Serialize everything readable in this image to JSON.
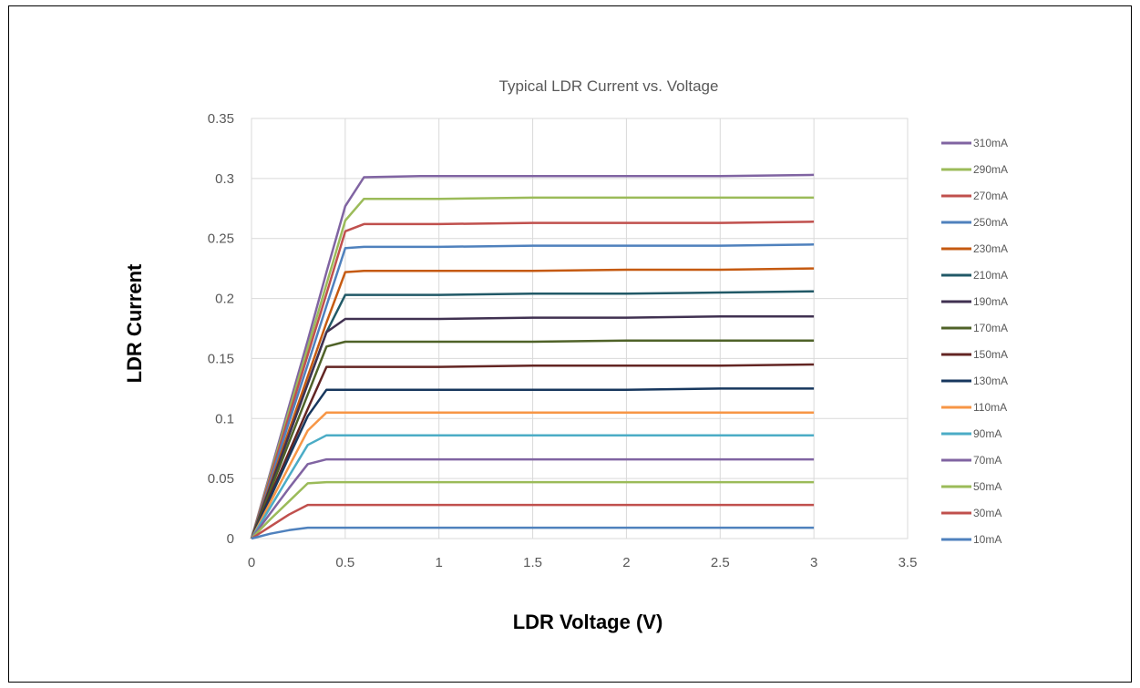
{
  "chart_data": {
    "type": "line",
    "title": "Typical LDR Current vs. Voltage",
    "xlabel": "LDR Voltage (V)",
    "ylabel": "LDR Current",
    "xlim": [
      0,
      3.5
    ],
    "ylim": [
      0,
      0.35
    ],
    "x_ticks": [
      "0",
      "0.5",
      "1",
      "1.5",
      "2",
      "2.5",
      "3",
      "3.5"
    ],
    "y_ticks": [
      "0",
      "0.05",
      "0.1",
      "0.15",
      "0.2",
      "0.25",
      "0.3",
      "0.35"
    ],
    "grid": true,
    "legend_position": "right",
    "series": [
      {
        "name": "310mA",
        "color": "#8064a2",
        "x": [
          0,
          0.1,
          0.2,
          0.3,
          0.4,
          0.5,
          0.6,
          0.9,
          1.5,
          2,
          2.5,
          3
        ],
        "y": [
          0,
          0.055,
          0.11,
          0.165,
          0.222,
          0.277,
          0.301,
          0.302,
          0.302,
          0.302,
          0.302,
          0.303
        ]
      },
      {
        "name": "290mA",
        "color": "#9bbb59",
        "x": [
          0,
          0.1,
          0.2,
          0.3,
          0.4,
          0.5,
          0.6,
          1,
          1.5,
          2,
          2.5,
          3
        ],
        "y": [
          0,
          0.053,
          0.106,
          0.159,
          0.212,
          0.265,
          0.283,
          0.283,
          0.284,
          0.284,
          0.284,
          0.284
        ]
      },
      {
        "name": "270mA",
        "color": "#c0504d",
        "x": [
          0,
          0.1,
          0.2,
          0.3,
          0.4,
          0.5,
          0.6,
          1,
          1.5,
          2,
          2.5,
          3
        ],
        "y": [
          0,
          0.051,
          0.102,
          0.153,
          0.204,
          0.256,
          0.262,
          0.262,
          0.263,
          0.263,
          0.263,
          0.264
        ]
      },
      {
        "name": "250mA",
        "color": "#4f81bd",
        "x": [
          0,
          0.1,
          0.2,
          0.3,
          0.4,
          0.5,
          0.6,
          1,
          1.5,
          2,
          2.5,
          3
        ],
        "y": [
          0,
          0.048,
          0.097,
          0.145,
          0.194,
          0.242,
          0.243,
          0.243,
          0.244,
          0.244,
          0.244,
          0.245
        ]
      },
      {
        "name": "230mA",
        "color": "#c55a11",
        "x": [
          0,
          0.1,
          0.2,
          0.3,
          0.4,
          0.5,
          0.6,
          1,
          1.5,
          2,
          2.5,
          3
        ],
        "y": [
          0,
          0.045,
          0.09,
          0.135,
          0.18,
          0.222,
          0.223,
          0.223,
          0.223,
          0.224,
          0.224,
          0.225
        ]
      },
      {
        "name": "210mA",
        "color": "#215967",
        "x": [
          0,
          0.1,
          0.2,
          0.3,
          0.4,
          0.5,
          0.6,
          1,
          1.5,
          2,
          2.5,
          3
        ],
        "y": [
          0,
          0.043,
          0.086,
          0.129,
          0.172,
          0.203,
          0.203,
          0.203,
          0.204,
          0.204,
          0.205,
          0.206
        ]
      },
      {
        "name": "190mA",
        "color": "#403151",
        "x": [
          0,
          0.1,
          0.2,
          0.3,
          0.4,
          0.5,
          0.6,
          1,
          1.5,
          2,
          2.5,
          3
        ],
        "y": [
          0,
          0.043,
          0.086,
          0.129,
          0.172,
          0.183,
          0.183,
          0.183,
          0.184,
          0.184,
          0.185,
          0.185
        ]
      },
      {
        "name": "170mA",
        "color": "#4f6228",
        "x": [
          0,
          0.1,
          0.2,
          0.3,
          0.4,
          0.5,
          0.6,
          1,
          1.5,
          2,
          2.5,
          3
        ],
        "y": [
          0,
          0.04,
          0.08,
          0.12,
          0.16,
          0.164,
          0.164,
          0.164,
          0.164,
          0.165,
          0.165,
          0.165
        ]
      },
      {
        "name": "150mA",
        "color": "#632523",
        "x": [
          0,
          0.1,
          0.2,
          0.3,
          0.4,
          0.5,
          0.6,
          1,
          1.5,
          2,
          2.5,
          3
        ],
        "y": [
          0,
          0.036,
          0.072,
          0.108,
          0.143,
          0.143,
          0.143,
          0.143,
          0.144,
          0.144,
          0.144,
          0.145
        ]
      },
      {
        "name": "130mA",
        "color": "#17375e",
        "x": [
          0,
          0.1,
          0.2,
          0.3,
          0.4,
          0.5,
          1,
          1.5,
          2,
          2.5,
          3
        ],
        "y": [
          0,
          0.034,
          0.068,
          0.102,
          0.124,
          0.124,
          0.124,
          0.124,
          0.124,
          0.125,
          0.125
        ]
      },
      {
        "name": "110mA",
        "color": "#f79646",
        "x": [
          0,
          0.1,
          0.2,
          0.3,
          0.4,
          0.5,
          1,
          1.5,
          2,
          2.5,
          3
        ],
        "y": [
          0,
          0.03,
          0.06,
          0.09,
          0.105,
          0.105,
          0.105,
          0.105,
          0.105,
          0.105,
          0.105
        ]
      },
      {
        "name": "90mA",
        "color": "#4bacc6",
        "x": [
          0,
          0.1,
          0.2,
          0.3,
          0.4,
          0.5,
          1,
          1.5,
          2,
          2.5,
          3
        ],
        "y": [
          0,
          0.026,
          0.052,
          0.078,
          0.086,
          0.086,
          0.086,
          0.086,
          0.086,
          0.086,
          0.086
        ]
      },
      {
        "name": "70mA",
        "color": "#8064a2",
        "x": [
          0,
          0.1,
          0.2,
          0.3,
          0.4,
          0.5,
          1,
          1.5,
          2,
          2.5,
          3
        ],
        "y": [
          0,
          0.021,
          0.042,
          0.062,
          0.066,
          0.066,
          0.066,
          0.066,
          0.066,
          0.066,
          0.066
        ]
      },
      {
        "name": "50mA",
        "color": "#9bbb59",
        "x": [
          0,
          0.1,
          0.2,
          0.3,
          0.4,
          0.5,
          1,
          1.5,
          2,
          2.5,
          3
        ],
        "y": [
          0,
          0.016,
          0.031,
          0.046,
          0.047,
          0.047,
          0.047,
          0.047,
          0.047,
          0.047,
          0.047
        ]
      },
      {
        "name": "30mA",
        "color": "#c0504d",
        "x": [
          0,
          0.1,
          0.2,
          0.3,
          0.4,
          0.5,
          1,
          1.5,
          2,
          2.5,
          3
        ],
        "y": [
          0,
          0.01,
          0.02,
          0.028,
          0.028,
          0.028,
          0.028,
          0.028,
          0.028,
          0.028,
          0.028
        ]
      },
      {
        "name": "10mA",
        "color": "#4f81bd",
        "x": [
          0,
          0.1,
          0.2,
          0.3,
          0.4,
          0.5,
          1,
          1.5,
          2,
          2.5,
          3
        ],
        "y": [
          0,
          0.004,
          0.007,
          0.009,
          0.009,
          0.009,
          0.009,
          0.009,
          0.009,
          0.009,
          0.009
        ]
      }
    ]
  }
}
